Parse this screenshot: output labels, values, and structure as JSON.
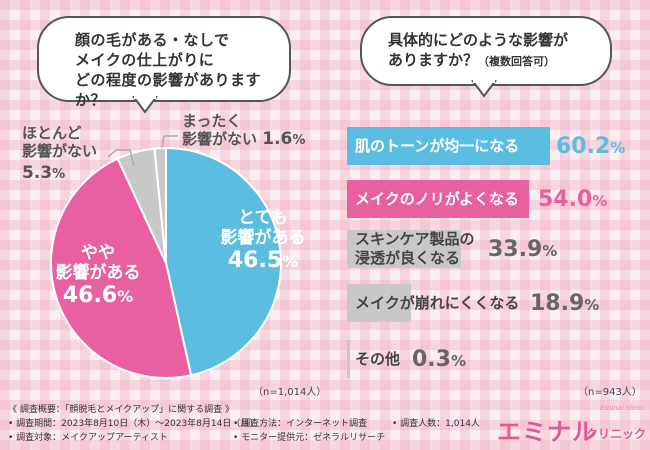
{
  "question_left": {
    "lines": [
      "顔の毛がある・なしで",
      "メイクの仕上がりに",
      "どの程度の影響がありますか？"
    ]
  },
  "question_right": {
    "line1": "具体的にどのような影響が",
    "line2_main": "ありますか？",
    "line2_note": "（複数回答可）"
  },
  "sample_left": "（n=1,014人）",
  "sample_right": "（n=943人）",
  "colors": {
    "blue": "#5bbde0",
    "pink": "#e8609f",
    "grey": "#c8c8c8"
  },
  "chart_data": [
    {
      "type": "pie",
      "slices": [
        {
          "label": "とても影響がある",
          "value": 46.5,
          "color": "#5bbde0"
        },
        {
          "label": "やや影響がある",
          "value": 46.6,
          "color": "#e8609f"
        },
        {
          "label": "ほとんど影響がない",
          "value": 5.3,
          "color": "#c8c8c8"
        },
        {
          "label": "まったく影響がない",
          "value": 1.6,
          "color": "#c8c8c8"
        }
      ]
    },
    {
      "type": "bar",
      "orientation": "horizontal",
      "categories": [
        "肌のトーンが均一になる",
        "メイクのノリがよくなる",
        "スキンケア製品の浸透が良くなる",
        "メイクが崩れにくくなる",
        "その他"
      ],
      "values": [
        60.2,
        54.0,
        33.9,
        18.9,
        0.3
      ],
      "colors": [
        "#5bbde0",
        "#e8609f",
        "#c8c8c8",
        "#c8c8c8",
        "#c8c8c8"
      ]
    }
  ],
  "pie_labels": {
    "very_l1": "とても",
    "very_l2": "影響がある",
    "very_pct": "46.5",
    "very_unit": "%",
    "some_l1": "やや",
    "some_l2": "影響がある",
    "some_pct": "46.6",
    "some_unit": "%",
    "little_l1": "ほとんど",
    "little_l2": "影響がない",
    "little_pct": "5.3",
    "little_unit": "%",
    "none_l1": "まったく",
    "none_l2": "影響がない",
    "none_pct": "1.6",
    "none_unit": "%"
  },
  "bar_labels": [
    {
      "l1": "肌のトーンが均一になる",
      "l2": "",
      "num": "60.2",
      "unit": "%"
    },
    {
      "l1": "メイクのノリがよくなる",
      "l2": "",
      "num": "54.0",
      "unit": "%"
    },
    {
      "l1": "スキンケア製品の",
      "l2": "浸透が良くなる",
      "num": "33.9",
      "unit": "%"
    },
    {
      "l1": "メイクが崩れにくくなる",
      "l2": "",
      "num": "18.9",
      "unit": "%"
    },
    {
      "l1": "その他",
      "l2": "",
      "num": "0.3",
      "unit": "%"
    }
  ],
  "footer": {
    "title": "《 調査概要：「顔脱毛とメイクアップ」に関する調査 》",
    "period": "• 調査期間：2023年8月10日（木）〜2023年8月14日（月）",
    "method": "• 調査方法：インターネット調査",
    "count": "• 調査人数：1,014人",
    "target": "• 調査対象：メイクアップアーティスト",
    "provider": "• モニター提供元：ゼネラルリサーチ"
  },
  "logo": {
    "tiny": "Eminal clinic",
    "main": "エミナル",
    "sub": "クリニック"
  }
}
